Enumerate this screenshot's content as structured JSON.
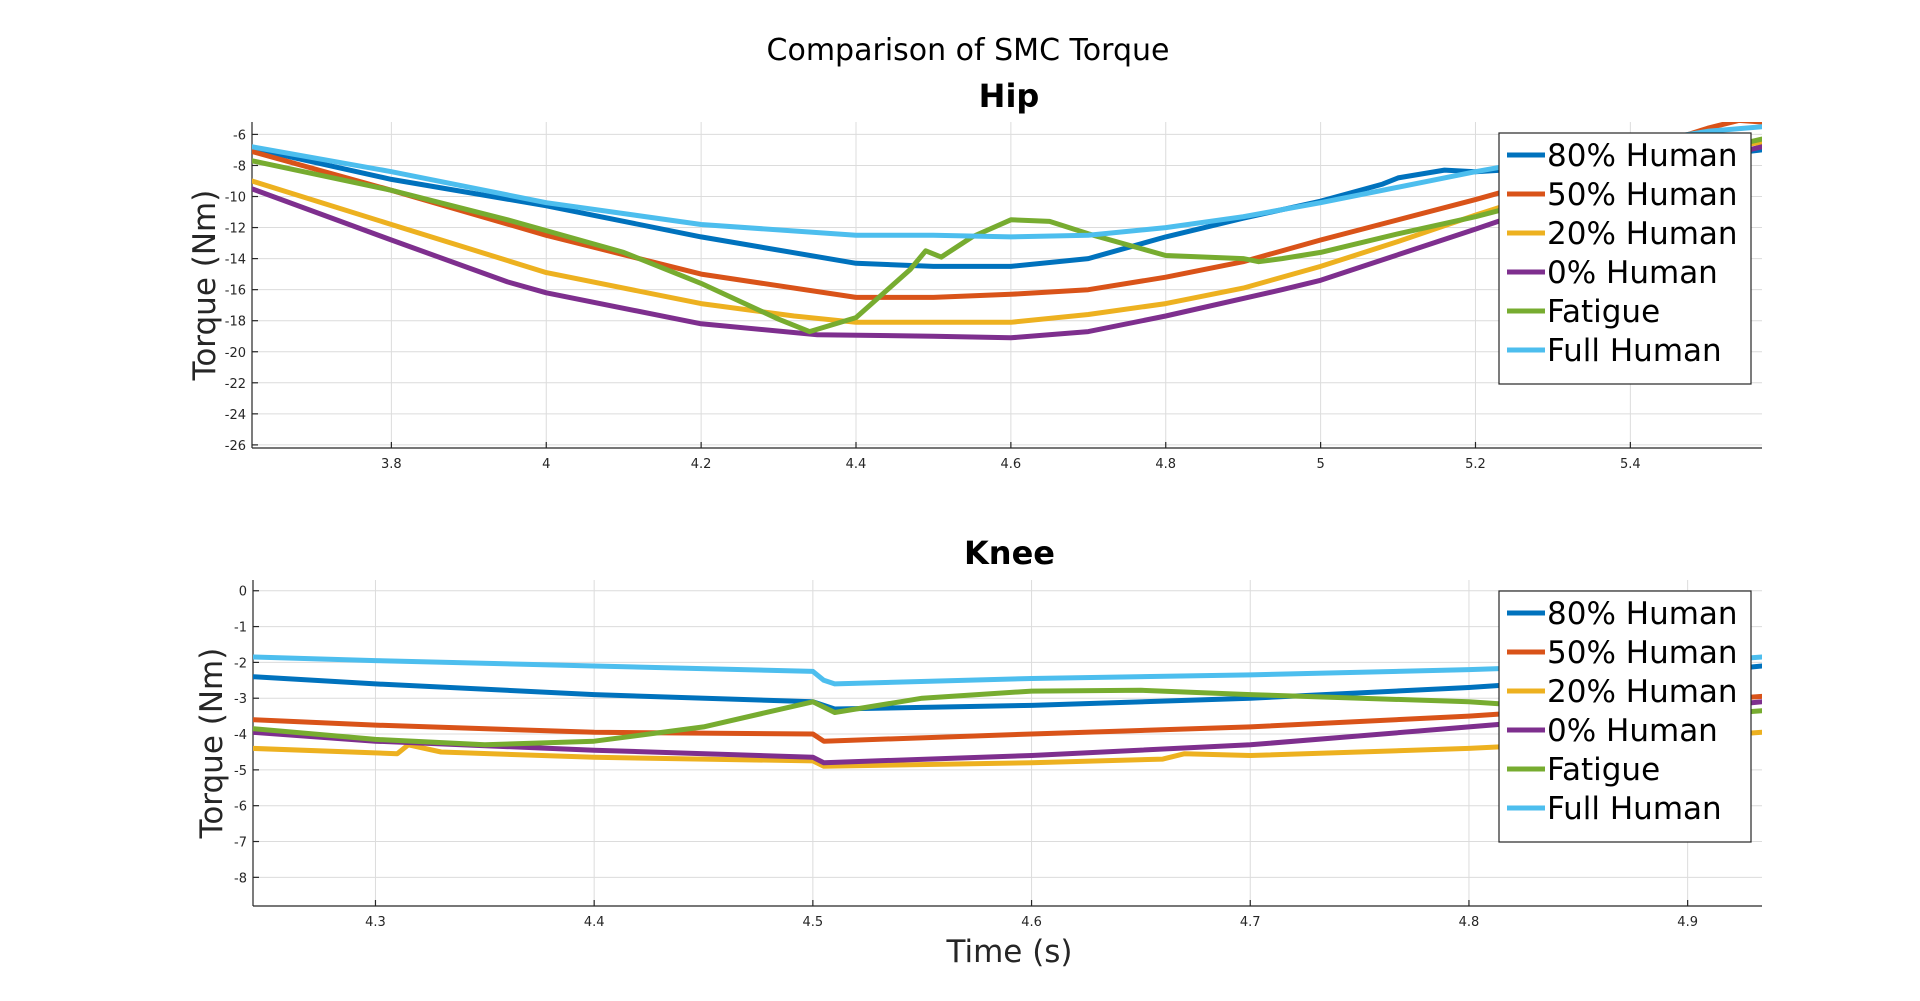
{
  "figure_title": "Comparison of SMC Torque",
  "chart_data": [
    {
      "type": "line",
      "title": "Hip",
      "xlabel": "",
      "ylabel": "Torque (Nm)",
      "xlim": [
        3.62,
        5.57
      ],
      "ylim": [
        -26.2,
        -5.2
      ],
      "xticks": [
        3.8,
        4,
        4.2,
        4.4,
        4.6,
        4.8,
        5,
        5.2,
        5.4
      ],
      "yticks": [
        -6,
        -8,
        -10,
        -12,
        -14,
        -16,
        -18,
        -20,
        -22,
        -24,
        -26
      ],
      "grid": true,
      "legend_position": "top-right",
      "series": [
        {
          "name": "80% Human",
          "color": "#0072BD",
          "x": [
            3.62,
            3.8,
            4.0,
            4.2,
            4.4,
            4.5,
            4.6,
            4.7,
            4.8,
            4.9,
            5.0,
            5.08,
            5.1,
            5.16,
            5.2,
            5.3,
            5.4,
            5.5,
            5.57
          ],
          "y": [
            -6.9,
            -8.9,
            -10.6,
            -12.6,
            -14.3,
            -14.5,
            -14.5,
            -14.0,
            -12.6,
            -11.4,
            -10.3,
            -9.2,
            -8.8,
            -8.3,
            -8.4,
            -8.1,
            -7.9,
            -7.4,
            -7.0
          ]
        },
        {
          "name": "50% Human",
          "color": "#D95319",
          "x": [
            3.62,
            3.8,
            4.0,
            4.2,
            4.4,
            4.5,
            4.6,
            4.7,
            4.8,
            4.9,
            5.0,
            5.2,
            5.3,
            5.4,
            5.5,
            5.54,
            5.57
          ],
          "y": [
            -7.1,
            -9.6,
            -12.5,
            -15.0,
            -16.5,
            -16.5,
            -16.3,
            -16.0,
            -15.2,
            -14.2,
            -12.8,
            -10.2,
            -8.8,
            -7.2,
            -5.6,
            -5.1,
            -5.2
          ]
        },
        {
          "name": "20% Human",
          "color": "#EDB120",
          "x": [
            3.62,
            3.8,
            4.0,
            4.2,
            4.32,
            4.4,
            4.5,
            4.6,
            4.7,
            4.8,
            4.9,
            5.0,
            5.1,
            5.2,
            5.3,
            5.4,
            5.5,
            5.57
          ],
          "y": [
            -9.0,
            -11.8,
            -14.9,
            -16.9,
            -17.7,
            -18.1,
            -18.1,
            -18.1,
            -17.6,
            -16.9,
            -15.9,
            -14.5,
            -12.9,
            -11.2,
            -9.6,
            -8.1,
            -7.0,
            -6.5
          ]
        },
        {
          "name": "0% Human",
          "color": "#7E2F8E",
          "x": [
            3.62,
            3.8,
            3.95,
            4.0,
            4.2,
            4.35,
            4.5,
            4.6,
            4.7,
            4.8,
            4.95,
            5.0,
            5.2,
            5.3,
            5.4,
            5.5,
            5.57
          ],
          "y": [
            -9.5,
            -12.8,
            -15.5,
            -16.2,
            -18.2,
            -18.9,
            -19.0,
            -19.1,
            -18.7,
            -17.7,
            -16.0,
            -15.4,
            -12.1,
            -10.4,
            -8.9,
            -7.6,
            -6.8
          ]
        },
        {
          "name": "Fatigue",
          "color": "#77AC30",
          "x": [
            3.62,
            3.8,
            3.95,
            4.1,
            4.2,
            4.3,
            4.34,
            4.4,
            4.47,
            4.49,
            4.51,
            4.55,
            4.6,
            4.65,
            4.7,
            4.8,
            4.9,
            4.92,
            4.95,
            5.0,
            5.1,
            5.2,
            5.3,
            5.4,
            5.5,
            5.57
          ],
          "y": [
            -7.7,
            -9.6,
            -11.5,
            -13.6,
            -15.6,
            -17.9,
            -18.7,
            -17.8,
            -14.7,
            -13.5,
            -13.9,
            -12.6,
            -11.5,
            -11.6,
            -12.4,
            -13.8,
            -14.0,
            -14.2,
            -14.0,
            -13.6,
            -12.4,
            -11.3,
            -10.0,
            -8.6,
            -7.1,
            -6.3
          ]
        },
        {
          "name": "Full Human",
          "color": "#4DBEEE",
          "x": [
            3.62,
            3.8,
            4.0,
            4.2,
            4.4,
            4.5,
            4.6,
            4.7,
            4.8,
            4.9,
            5.0,
            5.2,
            5.3,
            5.4,
            5.5,
            5.57
          ],
          "y": [
            -6.8,
            -8.4,
            -10.4,
            -11.8,
            -12.5,
            -12.5,
            -12.6,
            -12.5,
            -12.0,
            -11.3,
            -10.4,
            -8.4,
            -7.5,
            -6.6,
            -5.8,
            -5.5
          ]
        }
      ]
    },
    {
      "type": "line",
      "title": "Knee",
      "xlabel": "Time (s)",
      "ylabel": "Torque (Nm)",
      "xlim": [
        4.244,
        4.934
      ],
      "ylim": [
        -8.8,
        0.3
      ],
      "xticks": [
        4.3,
        4.4,
        4.5,
        4.6,
        4.7,
        4.8,
        4.9
      ],
      "yticks": [
        0,
        -1,
        -2,
        -3,
        -4,
        -5,
        -6,
        -7,
        -8
      ],
      "grid": true,
      "legend_position": "top-right",
      "series": [
        {
          "name": "80% Human",
          "color": "#0072BD",
          "x": [
            4.244,
            4.3,
            4.4,
            4.5,
            4.51,
            4.6,
            4.7,
            4.8,
            4.9,
            4.934
          ],
          "y": [
            -2.4,
            -2.6,
            -2.9,
            -3.1,
            -3.3,
            -3.2,
            -3.0,
            -2.7,
            -2.3,
            -2.1
          ]
        },
        {
          "name": "50% Human",
          "color": "#D95319",
          "x": [
            4.244,
            4.3,
            4.4,
            4.5,
            4.505,
            4.6,
            4.7,
            4.8,
            4.9,
            4.934
          ],
          "y": [
            -3.6,
            -3.75,
            -3.95,
            -4.0,
            -4.2,
            -4.0,
            -3.8,
            -3.5,
            -3.1,
            -2.95
          ]
        },
        {
          "name": "20% Human",
          "color": "#EDB120",
          "x": [
            4.244,
            4.31,
            4.315,
            4.33,
            4.4,
            4.5,
            4.505,
            4.6,
            4.66,
            4.67,
            4.7,
            4.8,
            4.9,
            4.934
          ],
          "y": [
            -4.4,
            -4.55,
            -4.3,
            -4.5,
            -4.65,
            -4.75,
            -4.9,
            -4.8,
            -4.7,
            -4.55,
            -4.6,
            -4.4,
            -4.1,
            -3.95
          ]
        },
        {
          "name": "0% Human",
          "color": "#7E2F8E",
          "x": [
            4.244,
            4.3,
            4.4,
            4.5,
            4.505,
            4.6,
            4.7,
            4.8,
            4.9,
            4.934
          ],
          "y": [
            -3.95,
            -4.2,
            -4.45,
            -4.65,
            -4.8,
            -4.6,
            -4.3,
            -3.8,
            -3.3,
            -3.1
          ]
        },
        {
          "name": "Fatigue",
          "color": "#77AC30",
          "x": [
            4.244,
            4.3,
            4.35,
            4.4,
            4.45,
            4.5,
            4.51,
            4.55,
            4.6,
            4.65,
            4.7,
            4.8,
            4.9,
            4.934
          ],
          "y": [
            -3.85,
            -4.15,
            -4.3,
            -4.2,
            -3.8,
            -3.1,
            -3.4,
            -3.0,
            -2.8,
            -2.78,
            -2.9,
            -3.1,
            -3.5,
            -3.35
          ]
        },
        {
          "name": "Full Human",
          "color": "#4DBEEE",
          "x": [
            4.244,
            4.3,
            4.4,
            4.5,
            4.505,
            4.51,
            4.6,
            4.7,
            4.8,
            4.9,
            4.934
          ],
          "y": [
            -1.85,
            -1.95,
            -2.1,
            -2.25,
            -2.5,
            -2.6,
            -2.45,
            -2.35,
            -2.2,
            -2.0,
            -1.85
          ]
        }
      ]
    }
  ]
}
